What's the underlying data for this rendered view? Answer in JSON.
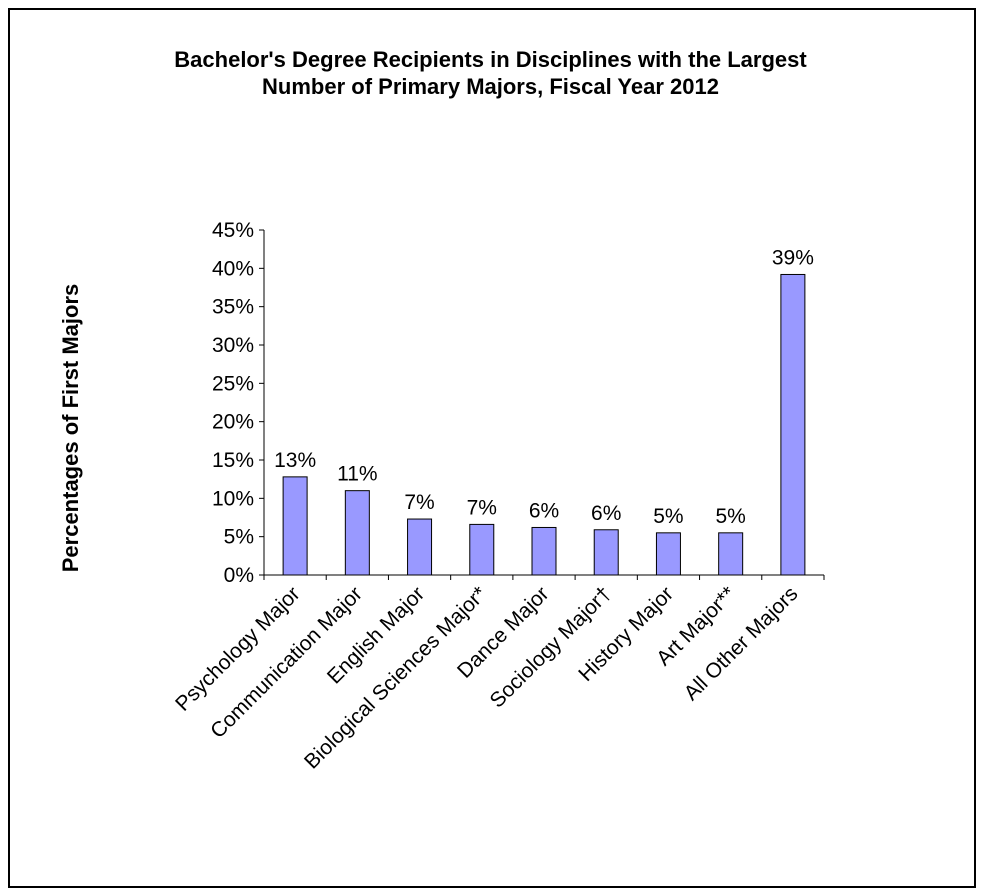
{
  "chart_data": {
    "type": "bar",
    "title_lines": [
      "Bachelor's Degree Recipients in Disciplines with the Largest",
      "Number of Primary Majors, Fiscal Year 2012"
    ],
    "xlabel": "",
    "ylabel": "Percentages of First Majors",
    "categories": [
      "Psychology Major",
      "Communication Major",
      "English Major",
      "Biological Sciences Major*",
      "Dance Major",
      "Sociology Major†",
      "History Major",
      "Art Major**",
      "All Other Majors"
    ],
    "values": [
      12.8,
      11.0,
      7.3,
      6.6,
      6.2,
      5.9,
      5.5,
      5.5,
      39.2
    ],
    "data_labels": [
      "13%",
      "11%",
      "7%",
      "7%",
      "6%",
      "6%",
      "5%",
      "5%",
      "39%"
    ],
    "y_ticks": [
      "0%",
      "5%",
      "10%",
      "15%",
      "20%",
      "25%",
      "30%",
      "35%",
      "40%",
      "45%"
    ],
    "ylim": [
      0,
      45
    ],
    "grid": false,
    "legend": "none",
    "bar_color": "#9999ff",
    "bar_outline": "#000000"
  }
}
